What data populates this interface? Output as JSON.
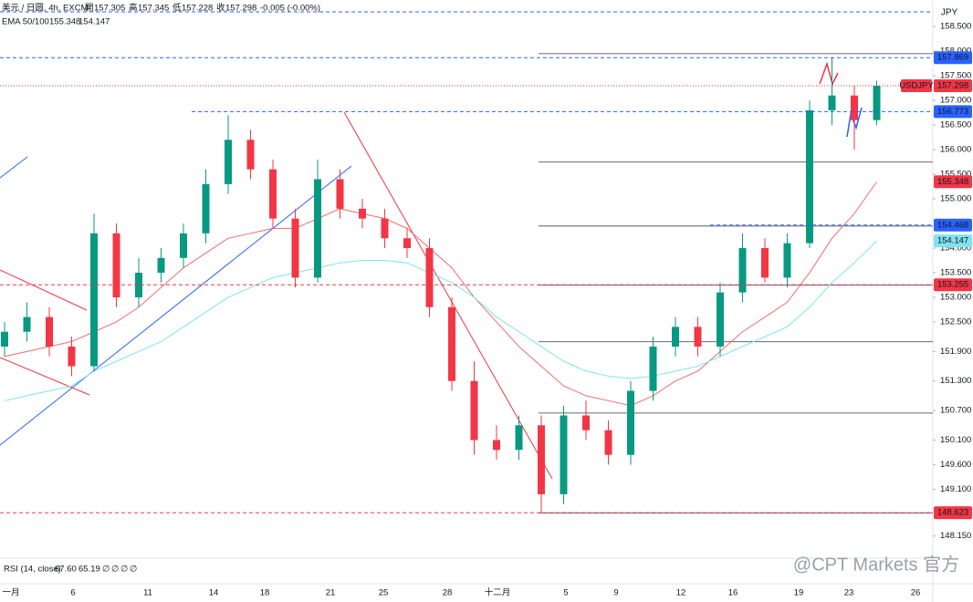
{
  "chart_data": {
    "type": "candlestick",
    "symbol_title": "美元 / 日圆, 4h, EXCM",
    "ohlc_labels": [
      {
        "name": "開",
        "value": "157.305"
      },
      {
        "name": "高",
        "value": "157.345"
      },
      {
        "name": "低",
        "value": "157.228"
      },
      {
        "name": "收",
        "value": "157.298"
      }
    ],
    "change_label": "-0.005 (-0.00%)",
    "ema_label": "EMA 50/100",
    "ema_values": [
      "155.348",
      "154.147"
    ],
    "rsi_label": "RSI (14, close)",
    "rsi_values": [
      "67.60",
      "65.19",
      "∅",
      "∅",
      "∅",
      "∅"
    ],
    "currency": "JPY",
    "watermark": "@CPT Markets 官方",
    "x_labels": [
      "一月",
      "6",
      "11",
      "14",
      "18",
      "21",
      "25",
      "28",
      "十二月",
      "5",
      "9",
      "12",
      "16",
      "19",
      "23",
      "26"
    ],
    "ylim": [
      147.7,
      159.04
    ],
    "yticks": [
      {
        "value": 158.5,
        "label": "158.500"
      },
      {
        "value": 158.0,
        "label": "158.000"
      },
      {
        "value": 157.5,
        "label": "157.500"
      },
      {
        "value": 157.0,
        "label": "157.000"
      },
      {
        "value": 156.5,
        "label": "156.500"
      },
      {
        "value": 156.0,
        "label": "156.000"
      },
      {
        "value": 155.5,
        "label": "155.500"
      },
      {
        "value": 155.0,
        "label": "155.000"
      },
      {
        "value": 154.0,
        "label": "154.000"
      },
      {
        "value": 153.5,
        "label": "153.500"
      },
      {
        "value": 153.0,
        "label": "153.000"
      },
      {
        "value": 152.5,
        "label": "152.500"
      },
      {
        "value": 151.9,
        "label": "151.900"
      },
      {
        "value": 151.3,
        "label": "151.300"
      },
      {
        "value": 150.7,
        "label": "150.700"
      },
      {
        "value": 150.1,
        "label": "150.100"
      },
      {
        "value": 149.6,
        "label": "149.600"
      },
      {
        "value": 149.1,
        "label": "149.100"
      },
      {
        "value": 148.15,
        "label": "148.150"
      }
    ],
    "up_color": "#089981",
    "down_color": "#f23645",
    "candles": {
      "open": [
        152.0,
        152.3,
        152.6,
        152.0,
        151.6,
        154.3,
        153.0,
        153.5,
        153.8,
        154.3,
        155.3,
        156.2,
        155.6,
        154.6,
        153.4,
        155.4,
        154.8,
        154.6,
        154.2,
        154.0,
        152.8,
        151.3,
        150.1,
        149.9,
        150.4,
        149.0,
        150.6,
        150.3,
        149.8,
        151.1,
        152.0,
        152.4,
        152.0,
        153.1,
        154.0,
        153.4,
        154.1,
        156.8,
        157.1,
        156.6
      ],
      "high": [
        152.5,
        152.9,
        152.8,
        152.2,
        154.7,
        154.5,
        153.8,
        154.0,
        154.5,
        155.6,
        156.7,
        156.4,
        155.8,
        154.8,
        155.8,
        155.6,
        155.0,
        154.8,
        154.4,
        154.2,
        153.0,
        151.7,
        150.4,
        150.6,
        150.6,
        150.8,
        150.9,
        150.5,
        151.3,
        152.2,
        152.6,
        152.6,
        153.3,
        154.3,
        154.2,
        154.3,
        157.0,
        157.87,
        157.3,
        157.4
      ],
      "low": [
        151.8,
        152.1,
        151.8,
        151.4,
        151.5,
        152.8,
        152.8,
        153.3,
        153.6,
        154.1,
        155.1,
        155.4,
        154.4,
        153.2,
        153.3,
        154.6,
        154.4,
        154.0,
        153.8,
        152.6,
        151.1,
        149.8,
        149.7,
        149.7,
        148.62,
        148.8,
        150.1,
        149.6,
        149.6,
        150.9,
        151.8,
        151.8,
        151.8,
        152.9,
        153.3,
        153.2,
        154.0,
        156.5,
        156.0,
        156.5
      ],
      "close": [
        152.3,
        152.6,
        152.0,
        151.6,
        154.3,
        153.0,
        153.5,
        153.8,
        154.3,
        155.3,
        156.2,
        155.6,
        154.6,
        153.4,
        155.4,
        154.8,
        154.6,
        154.2,
        154.0,
        152.8,
        151.3,
        150.1,
        149.9,
        150.4,
        149.0,
        150.6,
        150.3,
        149.8,
        151.1,
        152.0,
        152.4,
        152.0,
        153.1,
        154.0,
        153.4,
        154.1,
        156.8,
        157.1,
        156.6,
        157.298
      ]
    },
    "series": [
      {
        "name": "EMA 50",
        "color": "#f26d6d",
        "values": [
          151.8,
          151.9,
          152.0,
          152.1,
          152.3,
          152.5,
          152.8,
          153.2,
          153.6,
          153.9,
          154.2,
          154.3,
          154.4,
          154.4,
          154.6,
          154.8,
          154.7,
          154.6,
          154.4,
          154.0,
          153.6,
          153.0,
          152.5,
          152.0,
          151.6,
          151.2,
          151.0,
          150.9,
          150.8,
          151.0,
          151.3,
          151.5,
          151.9,
          152.3,
          152.6,
          152.9,
          153.5,
          154.2,
          154.7,
          155.348
        ]
      },
      {
        "name": "EMA 100",
        "color": "#7fe3f0",
        "values": [
          150.9,
          151.0,
          151.1,
          151.2,
          151.5,
          151.7,
          151.9,
          152.1,
          152.4,
          152.7,
          153.0,
          153.2,
          153.4,
          153.5,
          153.6,
          153.7,
          153.75,
          153.75,
          153.7,
          153.5,
          153.3,
          153.0,
          152.6,
          152.3,
          152.0,
          151.7,
          151.5,
          151.4,
          151.35,
          151.4,
          151.5,
          151.6,
          151.8,
          152.0,
          152.2,
          152.4,
          152.8,
          153.3,
          153.7,
          154.147
        ]
      }
    ],
    "levels": [
      157.95,
      155.75,
      154.45,
      153.25,
      152.1,
      150.65,
      148.62
    ],
    "top_dashed_level": 158.8,
    "price_badges": [
      {
        "value": 157.869,
        "label": "157.869",
        "color": "#2962ff"
      },
      {
        "value": 157.298,
        "label": "157.298",
        "color": "#f23645",
        "tag": "USDJPY"
      },
      {
        "value": 156.773,
        "label": "156.773",
        "color": "#2962ff"
      },
      {
        "value": 155.348,
        "label": "155.348",
        "color": "#f23645"
      },
      {
        "value": 154.468,
        "label": "154.468",
        "color": "#2962ff"
      },
      {
        "value": 154.147,
        "label": "154.147",
        "color": "#7fe3f0"
      },
      {
        "value": 153.255,
        "label": "153.255",
        "color": "#f23645"
      },
      {
        "value": 148.623,
        "label": "148.623",
        "color": "#f23645"
      }
    ]
  }
}
